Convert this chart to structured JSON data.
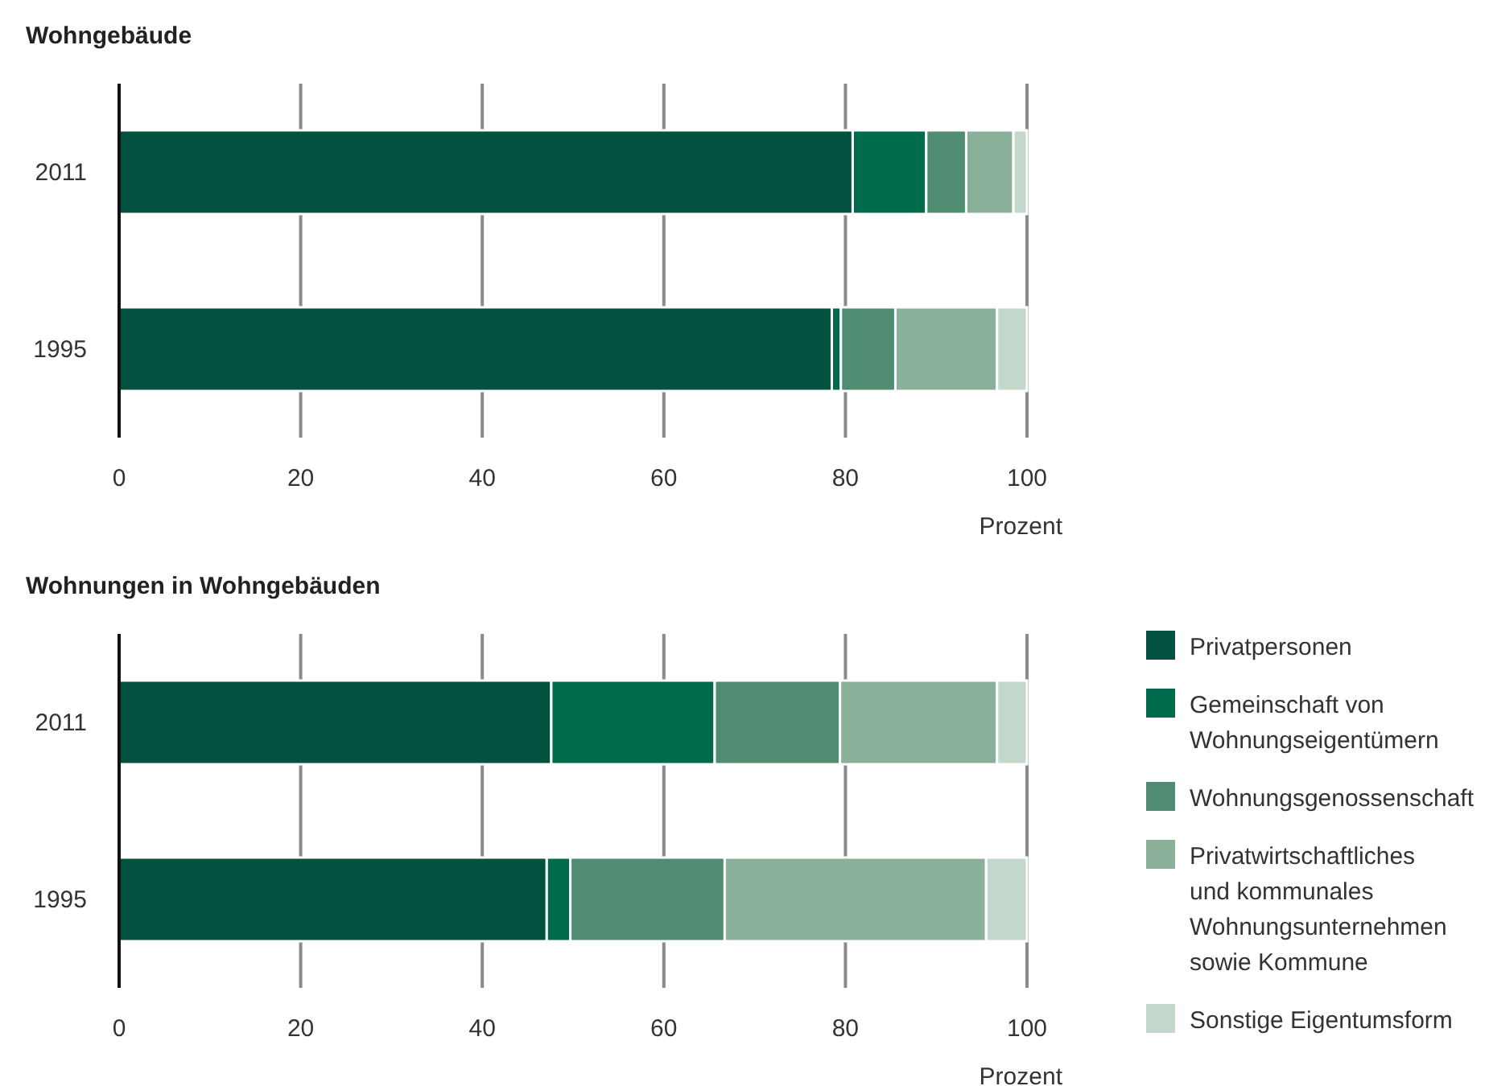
{
  "chart_data": [
    {
      "type": "bar",
      "title": "Wohngebäude",
      "orientation": "horizontal",
      "stacked": true,
      "categories": [
        "2011",
        "1995"
      ],
      "xlim": [
        0,
        100
      ],
      "xticks": [
        0,
        20,
        40,
        60,
        80,
        100
      ],
      "xlabel": "Prozent",
      "grid": "x",
      "legend": false,
      "series": [
        {
          "color": "#03513f",
          "values": [
            80.8,
            78.5
          ]
        },
        {
          "color": "#006b4c",
          "values": [
            8.1,
            1.0
          ]
        },
        {
          "color": "#508c71",
          "values": [
            4.4,
            6.0
          ]
        },
        {
          "color": "#8ab09a",
          "values": [
            5.2,
            11.2
          ]
        },
        {
          "color": "#c3d8cb",
          "values": [
            1.5,
            3.3
          ]
        }
      ]
    },
    {
      "type": "bar",
      "title": "Wohnungen in Wohngebäuden",
      "orientation": "horizontal",
      "stacked": true,
      "categories": [
        "2011",
        "1995"
      ],
      "xlim": [
        0,
        100
      ],
      "xticks": [
        0,
        20,
        40,
        60,
        80,
        100
      ],
      "xlabel": "Prozent",
      "grid": "x",
      "legend": "right",
      "series": [
        {
          "name": "Privatpersonen",
          "color": "#03513f",
          "values": [
            47.6,
            47.1
          ]
        },
        {
          "name": "Gemeinschaft von Wohnungseigentümern",
          "color": "#006b4c",
          "values": [
            18.0,
            2.6
          ]
        },
        {
          "name": "Wohnungsgenossenschaft",
          "color": "#508c71",
          "values": [
            13.8,
            17.0
          ]
        },
        {
          "name": "Privatwirtschaftliches und kommunales Wohnungsunternehmen sowie Kommune",
          "color": "#8ab09a",
          "values": [
            17.3,
            28.8
          ]
        },
        {
          "name": "Sonstige Eigentumsform",
          "color": "#c3d8cb",
          "values": [
            3.3,
            4.5
          ]
        }
      ]
    }
  ]
}
